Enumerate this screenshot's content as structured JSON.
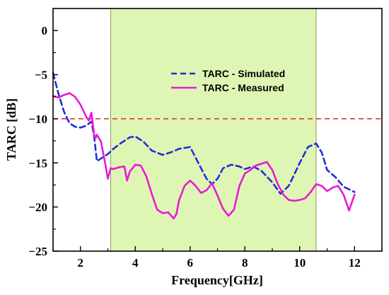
{
  "chart_data": {
    "type": "line",
    "title": "",
    "xlabel": "Frequency[GHz]",
    "ylabel": "TARC [dB]",
    "xlim": [
      1,
      13
    ],
    "ylim": [
      -25,
      2.5
    ],
    "xticks": [
      2,
      4,
      6,
      8,
      10,
      12
    ],
    "yticks": [
      0,
      -5,
      -10,
      -15,
      -20,
      -25
    ],
    "grid": false,
    "legend_position": "upper-center",
    "band": {
      "x_start": 3.1,
      "x_end": 10.6,
      "color": "#dff5b4"
    },
    "reference_line": {
      "y": -10,
      "color": "#e32626",
      "style": "dashed"
    },
    "series": [
      {
        "name": "TARC - Simulated",
        "color": "#1f2fd6",
        "style": "dashed",
        "x": [
          1.0,
          1.2,
          1.4,
          1.6,
          1.8,
          2.0,
          2.2,
          2.4,
          2.5,
          2.6,
          2.7,
          3.0,
          3.2,
          3.5,
          3.8,
          4.0,
          4.3,
          4.6,
          5.0,
          5.3,
          5.6,
          6.0,
          6.3,
          6.6,
          6.8,
          7.0,
          7.2,
          7.5,
          7.8,
          8.0,
          8.3,
          8.6,
          9.0,
          9.3,
          9.6,
          10.0,
          10.3,
          10.6,
          10.8,
          11.0,
          11.3,
          11.6,
          12.0
        ],
        "y": [
          -4.8,
          -7.2,
          -9.2,
          -10.5,
          -10.9,
          -11.0,
          -10.8,
          -10.3,
          -12.0,
          -14.8,
          -14.6,
          -14.0,
          -13.4,
          -12.7,
          -12.1,
          -12.0,
          -12.6,
          -13.6,
          -14.1,
          -13.8,
          -13.4,
          -13.2,
          -15.0,
          -16.8,
          -17.4,
          -16.8,
          -15.6,
          -15.2,
          -15.4,
          -15.7,
          -15.4,
          -15.9,
          -17.2,
          -18.5,
          -17.6,
          -15.0,
          -13.2,
          -12.8,
          -13.8,
          -15.8,
          -16.6,
          -17.7,
          -18.3
        ]
      },
      {
        "name": "TARC - Measured",
        "color": "#e81ad6",
        "style": "solid",
        "x": [
          1.0,
          1.2,
          1.4,
          1.6,
          1.8,
          2.0,
          2.2,
          2.3,
          2.4,
          2.5,
          2.55,
          2.6,
          2.75,
          2.9,
          3.0,
          3.1,
          3.2,
          3.4,
          3.6,
          3.7,
          3.8,
          3.9,
          4.0,
          4.2,
          4.4,
          4.6,
          4.8,
          5.0,
          5.2,
          5.4,
          5.5,
          5.6,
          5.8,
          6.0,
          6.2,
          6.4,
          6.6,
          6.8,
          7.0,
          7.2,
          7.4,
          7.6,
          7.8,
          8.0,
          8.2,
          8.4,
          8.6,
          8.8,
          9.0,
          9.2,
          9.4,
          9.6,
          9.8,
          10.0,
          10.2,
          10.4,
          10.6,
          10.8,
          11.0,
          11.2,
          11.4,
          11.6,
          11.8,
          12.0
        ],
        "y": [
          -7.4,
          -7.6,
          -7.3,
          -7.1,
          -7.5,
          -8.4,
          -9.7,
          -10.2,
          -9.3,
          -11.8,
          -12.2,
          -11.8,
          -12.6,
          -15.0,
          -16.8,
          -15.6,
          -15.7,
          -15.5,
          -15.4,
          -17.0,
          -16.0,
          -15.6,
          -15.2,
          -15.3,
          -16.5,
          -18.5,
          -20.3,
          -20.7,
          -20.6,
          -21.3,
          -20.8,
          -19.2,
          -17.6,
          -17.0,
          -17.6,
          -18.4,
          -18.1,
          -17.3,
          -18.7,
          -20.2,
          -21.0,
          -20.3,
          -17.6,
          -16.2,
          -15.8,
          -15.3,
          -15.1,
          -14.9,
          -15.8,
          -17.4,
          -18.6,
          -19.2,
          -19.3,
          -19.2,
          -19.0,
          -18.3,
          -17.4,
          -17.6,
          -18.2,
          -17.8,
          -17.6,
          -18.6,
          -20.4,
          -18.6
        ]
      }
    ]
  }
}
